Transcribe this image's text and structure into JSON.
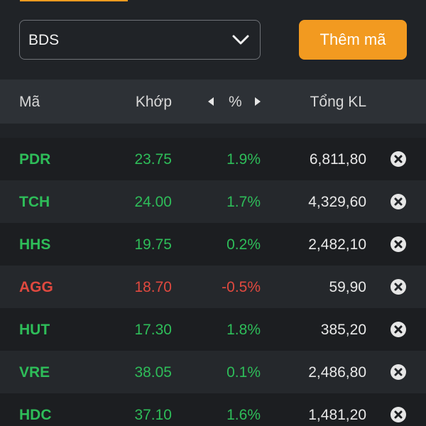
{
  "toolbar": {
    "select_value": "BDS",
    "add_button_label": "Thêm mã"
  },
  "header": {
    "symbol": "Mã",
    "match": "Khớp",
    "percent": "%",
    "volume": "Tổng KL"
  },
  "colors": {
    "up": "#2ebd59",
    "down": "#e0493f",
    "accent": "#f29a20"
  },
  "rows": [
    {
      "symbol": "PDR",
      "price": "23.75",
      "change": "1.9%",
      "volume": "6,811,80",
      "trend": "up"
    },
    {
      "symbol": "TCH",
      "price": "24.00",
      "change": "1.7%",
      "volume": "4,329,60",
      "trend": "up"
    },
    {
      "symbol": "HHS",
      "price": "19.75",
      "change": "0.2%",
      "volume": "2,482,10",
      "trend": "up"
    },
    {
      "symbol": "AGG",
      "price": "18.70",
      "change": "-0.5%",
      "volume": "59,90",
      "trend": "down"
    },
    {
      "symbol": "HUT",
      "price": "17.30",
      "change": "1.8%",
      "volume": "385,20",
      "trend": "up"
    },
    {
      "symbol": "VRE",
      "price": "38.05",
      "change": "0.1%",
      "volume": "2,486,80",
      "trend": "up"
    },
    {
      "symbol": "HDC",
      "price": "37.10",
      "change": "1.6%",
      "volume": "1,481,20",
      "trend": "up"
    }
  ]
}
